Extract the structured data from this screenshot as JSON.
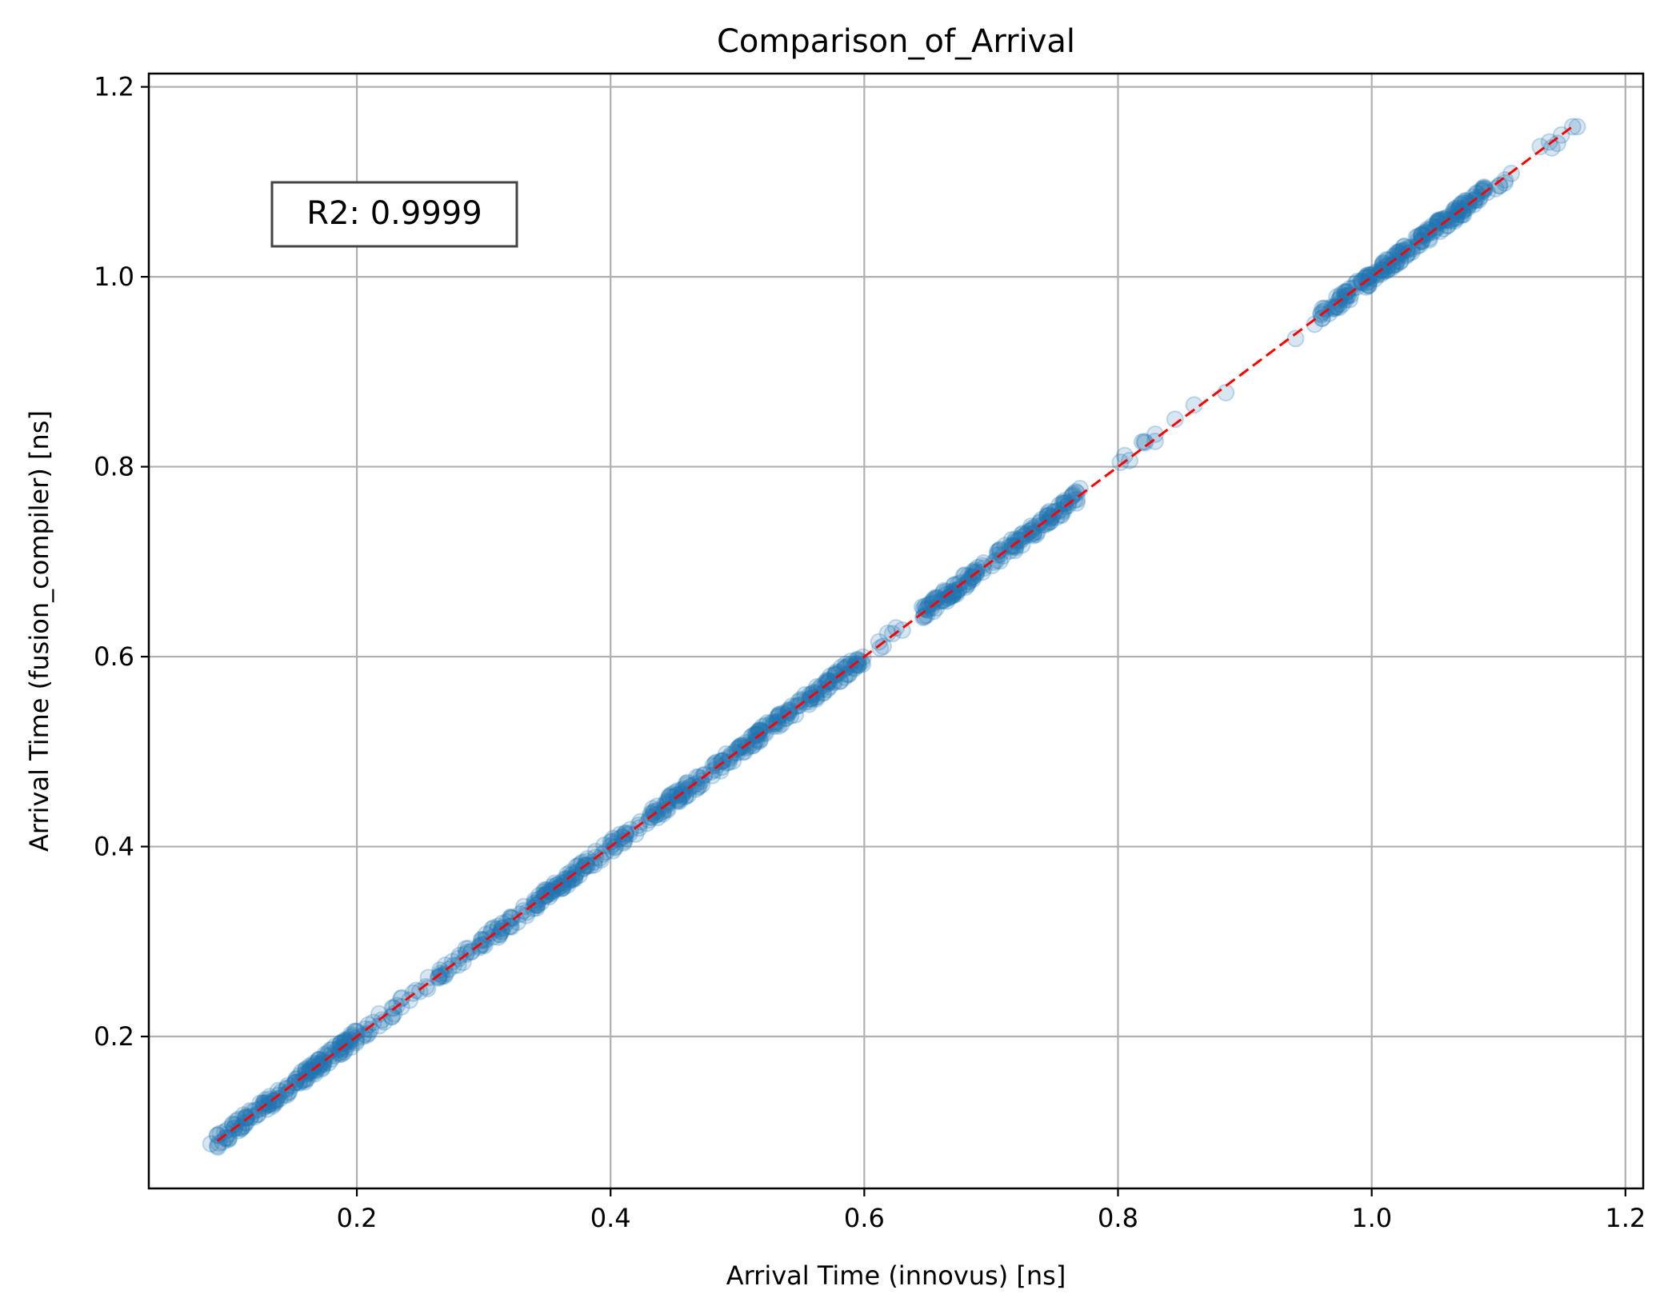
{
  "chart_data": {
    "type": "scatter",
    "title": "Comparison_of_Arrival",
    "xlabel": "Arrival Time (innovus) [ns]",
    "ylabel": "Arrival Time (fusion_compiler) [ns]",
    "xlim": [
      0.036,
      1.214
    ],
    "ylim": [
      0.04,
      1.214
    ],
    "xticks": [
      0.2,
      0.4,
      0.6,
      0.8,
      1.0,
      1.2
    ],
    "yticks": [
      0.2,
      0.4,
      0.6,
      0.8,
      1.0,
      1.2
    ],
    "xtick_labels": [
      "0.2",
      "0.4",
      "0.6",
      "0.8",
      "1.0",
      "1.2"
    ],
    "ytick_labels": [
      "0.2",
      "0.4",
      "0.6",
      "0.8",
      "1.0",
      "1.2"
    ],
    "grid": true,
    "annotation": "R2: 0.9999",
    "reference_line": {
      "x": [
        0.09,
        1.16
      ],
      "y": [
        0.09,
        1.16
      ],
      "color": "#ff0000",
      "style": "dashed"
    },
    "point_color": "#1f77b4",
    "segments": [
      {
        "x_start": 0.09,
        "x_end": 0.2,
        "count": 170
      },
      {
        "x_start": 0.2,
        "x_end": 0.34,
        "count": 90
      },
      {
        "x_start": 0.34,
        "x_end": 0.6,
        "count": 330
      },
      {
        "x_start": 0.6,
        "x_end": 0.63,
        "count": 6
      },
      {
        "x_start": 0.645,
        "x_end": 0.77,
        "count": 170
      },
      {
        "x_start": 0.8,
        "x_end": 0.83,
        "count": 8
      },
      {
        "x_start": 0.96,
        "x_end": 1.09,
        "count": 210
      },
      {
        "x_start": 1.09,
        "x_end": 1.16,
        "count": 12
      }
    ],
    "points": [
      [
        0.085,
        0.087
      ],
      [
        0.845,
        0.85
      ],
      [
        0.86,
        0.865
      ],
      [
        0.885,
        0.878
      ],
      [
        0.94,
        0.935
      ],
      [
        0.955,
        0.95
      ],
      [
        0.63,
        0.628
      ],
      [
        0.265,
        0.263
      ],
      [
        1.14,
        1.142
      ],
      [
        1.162,
        1.158
      ]
    ]
  }
}
